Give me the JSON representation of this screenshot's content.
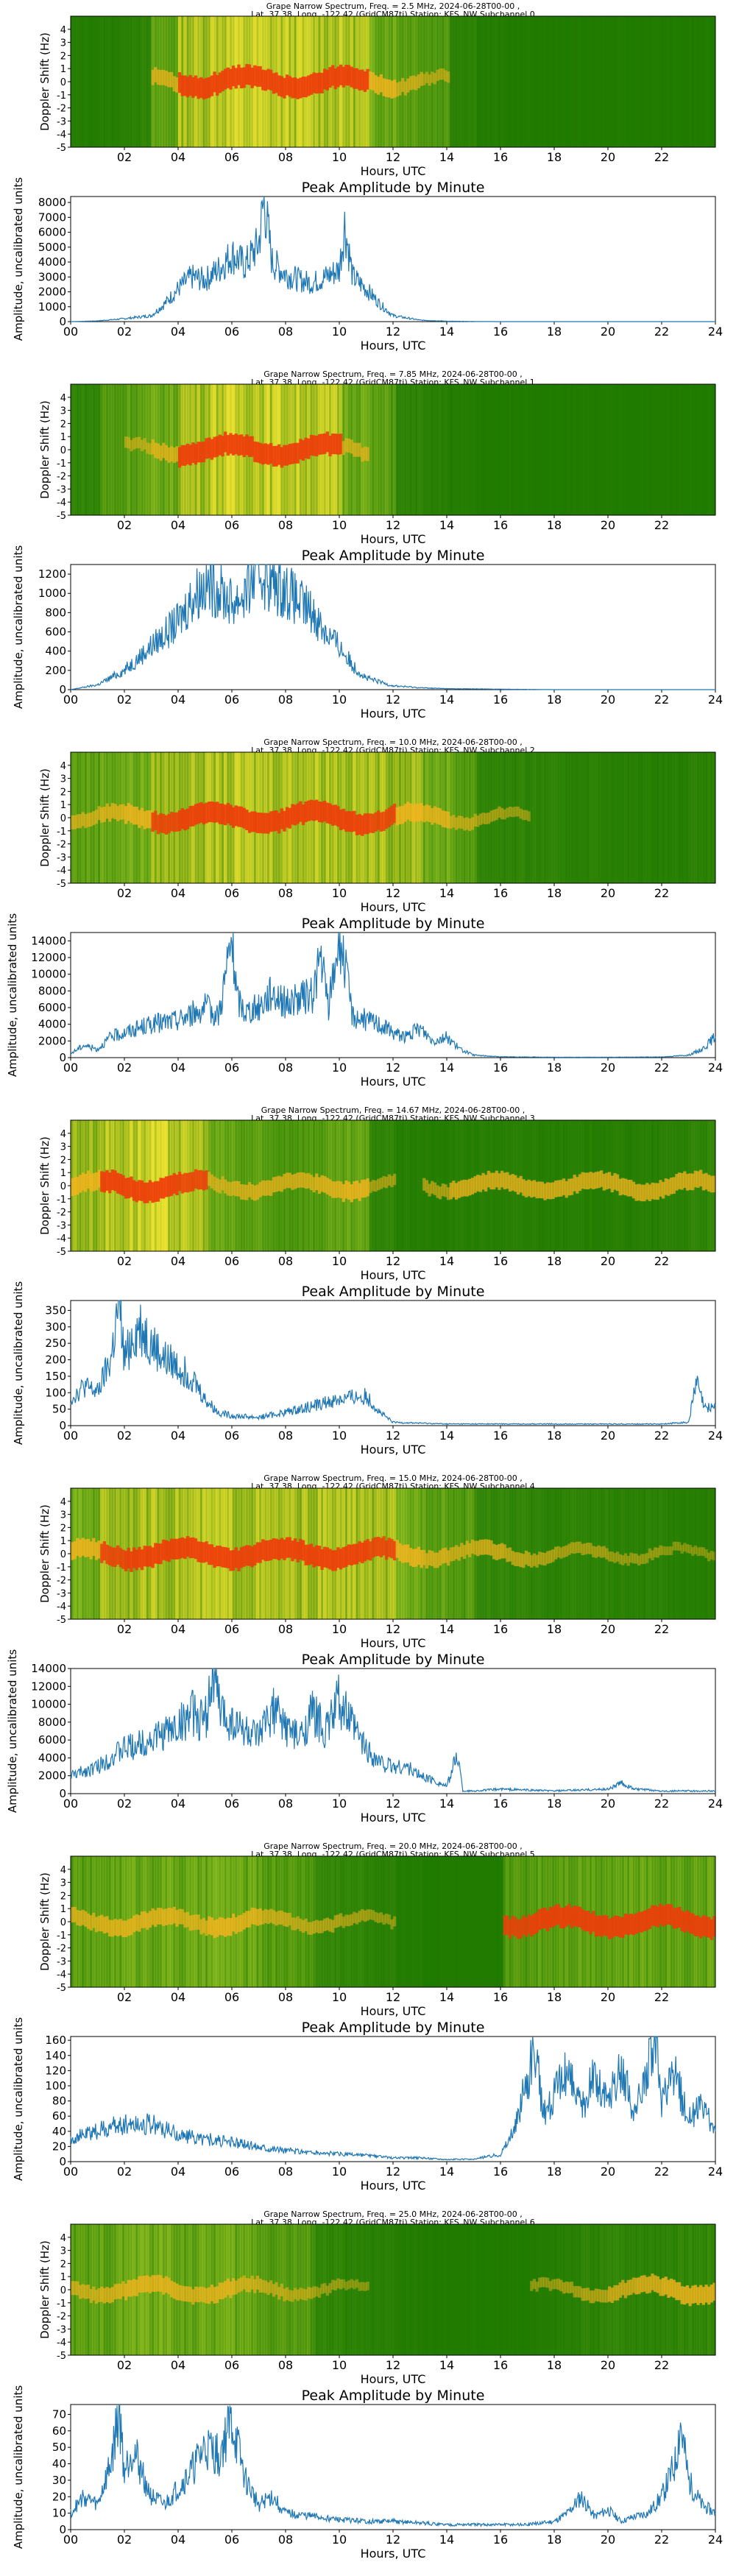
{
  "figure": {
    "x_label": "Hours, UTC",
    "spectrogram_y_label": "Doppler Shift (Hz)",
    "amplitude_title": "Peak Amplitude by Minute",
    "amplitude_y_label": "Amplitude, uncalibrated units",
    "spectrogram_x_ticks": [
      "02",
      "04",
      "06",
      "08",
      "10",
      "12",
      "14",
      "16",
      "18",
      "20",
      "22"
    ],
    "amplitude_x_ticks": [
      "00",
      "02",
      "04",
      "06",
      "08",
      "10",
      "12",
      "14",
      "16",
      "18",
      "20",
      "22",
      "24"
    ],
    "doppler_ticks": [
      "4",
      "3",
      "2",
      "1",
      "0",
      "-1",
      "-2",
      "-3",
      "-4",
      "-5"
    ],
    "colors": {
      "background": "#1f7a00",
      "line": "#1f77b4"
    }
  },
  "chart_data": [
    {
      "type": "heatmap",
      "title_line1": "Grape Narrow Spectrum, Freq. = 2.5 MHz, 2024-06-28T00-00 ,",
      "title_line2": "Lat.  37.38, Long. -122.42 (GridCM87tj) Station: KFS_NW Subchannel 0",
      "ylabel": "Doppler Shift (Hz)",
      "xlabel": "Hours, UTC",
      "x_range": [
        0,
        24
      ],
      "y_range": [
        -5,
        5
      ],
      "activity_profile": [
        0.15,
        0.2,
        0.3,
        0.55,
        0.85,
        1.0,
        1.0,
        0.95,
        0.95,
        0.9,
        0.85,
        0.7,
        0.55,
        0.45,
        0.3,
        0.15,
        0.1,
        0.1,
        0.1,
        0.1,
        0.1,
        0.1,
        0.1,
        0.1
      ],
      "trace_profile": [
        0,
        0,
        0,
        0.6,
        1,
        1,
        1,
        1,
        1,
        1,
        1,
        0.8,
        0.5,
        0.3,
        0,
        0,
        0,
        0,
        0,
        0,
        0,
        0,
        0,
        0
      ]
    },
    {
      "type": "line",
      "title": "Peak Amplitude by Minute",
      "xlabel": "Hours, UTC",
      "ylabel": "Amplitude, uncalibrated units",
      "xlim": [
        0,
        24
      ],
      "ylim": [
        0,
        8400
      ],
      "y_ticks": [
        0,
        1000,
        2000,
        3000,
        4000,
        5000,
        6000,
        7000,
        8000
      ],
      "x": [
        0,
        1,
        2,
        3,
        3.5,
        4,
        4.5,
        5,
        5.5,
        6,
        6.5,
        7,
        7.2,
        7.5,
        8,
        8.5,
        9,
        9.5,
        10,
        10.2,
        10.5,
        11,
        11.5,
        12,
        13,
        14,
        15,
        16,
        18,
        20,
        22,
        24
      ],
      "y": [
        0,
        50,
        200,
        400,
        1200,
        2200,
        3000,
        2800,
        3500,
        4500,
        3800,
        5200,
        8200,
        4000,
        3200,
        2800,
        2600,
        3000,
        3500,
        6500,
        3000,
        2200,
        1200,
        400,
        100,
        30,
        10,
        0,
        0,
        0,
        0,
        0
      ]
    },
    {
      "type": "heatmap",
      "title_line1": "Grape Narrow Spectrum, Freq. = 7.85 MHz, 2024-06-28T00-00 ,",
      "title_line2": "Lat.  37.38, Long. -122.42 (GridCM87tj) Station: KFS_NW Subchannel 1",
      "ylabel": "Doppler Shift (Hz)",
      "xlabel": "Hours, UTC",
      "x_range": [
        0,
        24
      ],
      "y_range": [
        -5,
        5
      ],
      "activity_profile": [
        0.35,
        0.45,
        0.55,
        0.65,
        0.85,
        1.0,
        1.0,
        1.0,
        0.95,
        0.9,
        0.7,
        0.5,
        0.3,
        0.2,
        0.15,
        0.1,
        0.1,
        0.1,
        0.1,
        0.1,
        0.1,
        0.1,
        0.1,
        0.1
      ],
      "trace_profile": [
        0,
        0,
        0.3,
        0.6,
        1,
        1,
        1,
        1,
        1,
        1,
        0.5,
        0,
        0,
        0,
        0,
        0,
        0,
        0,
        0,
        0,
        0,
        0,
        0,
        0
      ]
    },
    {
      "type": "line",
      "title": "Peak Amplitude by Minute",
      "xlabel": "Hours, UTC",
      "ylabel": "Amplitude, uncalibrated units",
      "xlim": [
        0,
        24
      ],
      "ylim": [
        0,
        1300
      ],
      "y_ticks": [
        0,
        200,
        400,
        600,
        800,
        1000,
        1200
      ],
      "x": [
        0,
        1,
        2,
        3,
        4,
        4.5,
        5,
        5.5,
        6,
        6.5,
        7,
        7.5,
        8,
        8.5,
        9,
        9.5,
        10,
        10.5,
        11,
        12,
        13,
        14,
        16,
        18,
        20,
        22,
        24
      ],
      "y": [
        0,
        50,
        200,
        450,
        700,
        950,
        1100,
        1050,
        900,
        1000,
        1250,
        1100,
        1050,
        900,
        800,
        600,
        450,
        250,
        120,
        40,
        20,
        10,
        5,
        0,
        0,
        0,
        0
      ]
    },
    {
      "type": "heatmap",
      "title_line1": "Grape Narrow Spectrum, Freq. = 10.0 MHz, 2024-06-28T00-00 ,",
      "title_line2": "Lat.  37.38, Long. -122.42 (GridCM87tj) Station: KFS_NW Subchannel 2",
      "ylabel": "Doppler Shift (Hz)",
      "xlabel": "Hours, UTC",
      "x_range": [
        0,
        24
      ],
      "y_range": [
        -5,
        5
      ],
      "activity_profile": [
        0.55,
        0.65,
        0.7,
        0.75,
        0.8,
        0.85,
        0.9,
        0.9,
        0.9,
        0.9,
        0.85,
        0.8,
        0.75,
        0.7,
        0.5,
        0.35,
        0.3,
        0.3,
        0.25,
        0.25,
        0.2,
        0.2,
        0.2,
        0.25
      ],
      "trace_profile": [
        0.5,
        0.6,
        0.8,
        0.9,
        1,
        1,
        1,
        1,
        1,
        1,
        1,
        0.9,
        0.8,
        0.7,
        0.4,
        0.3,
        0.2,
        0,
        0,
        0,
        0,
        0,
        0,
        0
      ]
    },
    {
      "type": "line",
      "title": "Peak Amplitude by Minute",
      "xlabel": "Hours, UTC",
      "ylabel": "Amplitude, uncalibrated units",
      "xlim": [
        0,
        24
      ],
      "ylim": [
        0,
        15000
      ],
      "y_ticks": [
        0,
        2000,
        4000,
        6000,
        8000,
        10000,
        12000,
        14000
      ],
      "x": [
        0,
        0.5,
        1,
        1.5,
        2,
        3,
        4,
        5,
        5.5,
        6,
        6.2,
        6.5,
        7,
        7.5,
        8,
        8.5,
        9,
        9.3,
        9.6,
        10,
        10.5,
        11,
        11.5,
        12,
        12.5,
        13,
        13.5,
        14,
        14.5,
        15,
        16,
        18,
        20,
        22,
        23,
        23.5,
        24
      ],
      "y": [
        500,
        1500,
        1000,
        2500,
        3000,
        4000,
        4500,
        6000,
        5000,
        14000,
        7000,
        5500,
        6000,
        8000,
        6500,
        7000,
        7500,
        12000,
        6000,
        15000,
        5000,
        4500,
        4000,
        3000,
        2500,
        3500,
        2000,
        2500,
        1000,
        300,
        100,
        50,
        50,
        80,
        300,
        1000,
        2500
      ]
    },
    {
      "type": "heatmap",
      "title_line1": "Grape Narrow Spectrum, Freq. = 14.67 MHz, 2024-06-28T00-00 ,",
      "title_line2": "Lat.  37.38, Long. -122.42 (GridCM87tj) Station: KFS_NW Subchannel 3",
      "ylabel": "Doppler Shift (Hz)",
      "xlabel": "Hours, UTC",
      "x_range": [
        0,
        24
      ],
      "y_range": [
        -5,
        5
      ],
      "activity_profile": [
        0.75,
        0.9,
        1.0,
        1.0,
        0.85,
        0.6,
        0.5,
        0.45,
        0.45,
        0.5,
        0.55,
        0.35,
        0.2,
        0.15,
        0.2,
        0.2,
        0.2,
        0.2,
        0.2,
        0.2,
        0.2,
        0.2,
        0.25,
        0.35
      ],
      "trace_profile": [
        0.8,
        1,
        1,
        1,
        0.9,
        0.5,
        0.6,
        0.6,
        0.6,
        0.7,
        0.8,
        0.3,
        0,
        0.4,
        0.7,
        0.7,
        0.7,
        0.7,
        0.7,
        0.7,
        0.7,
        0.7,
        0.7,
        0.7
      ]
    },
    {
      "type": "line",
      "title": "Peak Amplitude by Minute",
      "xlabel": "Hours, UTC",
      "ylabel": "Amplitude, uncalibrated units",
      "xlim": [
        0,
        24
      ],
      "ylim": [
        0,
        380
      ],
      "y_ticks": [
        0,
        50,
        100,
        150,
        200,
        250,
        300,
        350
      ],
      "x": [
        0,
        0.5,
        1,
        1.5,
        1.8,
        2,
        2.3,
        2.6,
        3,
        3.5,
        4,
        4.5,
        5,
        5.5,
        6,
        7,
        8,
        9,
        10,
        11,
        11.5,
        12,
        14,
        16,
        18,
        20,
        22,
        23,
        23.3,
        23.6,
        24
      ],
      "y": [
        80,
        120,
        100,
        200,
        370,
        200,
        270,
        300,
        250,
        200,
        180,
        150,
        80,
        40,
        30,
        25,
        40,
        60,
        80,
        90,
        40,
        10,
        5,
        5,
        5,
        5,
        5,
        10,
        130,
        50,
        60
      ]
    },
    {
      "type": "heatmap",
      "title_line1": "Grape Narrow Spectrum, Freq. = 15.0 MHz, 2024-06-28T00-00 ,",
      "title_line2": "Lat.  37.38, Long. -122.42 (GridCM87tj) Station: KFS_NW Subchannel 4",
      "ylabel": "Doppler Shift (Hz)",
      "xlabel": "Hours, UTC",
      "x_range": [
        0,
        24
      ],
      "y_range": [
        -5,
        5
      ],
      "activity_profile": [
        0.7,
        0.8,
        0.8,
        0.85,
        0.85,
        0.9,
        0.85,
        0.8,
        0.8,
        0.85,
        0.85,
        0.75,
        0.7,
        0.6,
        0.45,
        0.4,
        0.35,
        0.3,
        0.3,
        0.3,
        0.25,
        0.25,
        0.2,
        0.2
      ],
      "trace_profile": [
        0.8,
        0.9,
        1,
        1,
        1,
        1,
        1,
        1,
        1,
        1,
        1,
        0.9,
        0.8,
        0.6,
        0.5,
        0.6,
        0.5,
        0.4,
        0.3,
        0.3,
        0.2,
        0.2,
        0.1,
        0.1
      ]
    },
    {
      "type": "line",
      "title": "Peak Amplitude by Minute",
      "xlabel": "Hours, UTC",
      "ylabel": "Amplitude, uncalibrated units",
      "xlim": [
        0,
        24
      ],
      "ylim": [
        0,
        14000
      ],
      "y_ticks": [
        0,
        2000,
        4000,
        6000,
        8000,
        10000,
        12000,
        14000
      ],
      "x": [
        0,
        1,
        2,
        3,
        4,
        4.5,
        5,
        5.3,
        5.6,
        6,
        7,
        7.5,
        8,
        8.5,
        9,
        9.5,
        10,
        10.5,
        11,
        11.5,
        12,
        12.5,
        13,
        13.5,
        14,
        14.4,
        14.6,
        15,
        16,
        18,
        20,
        20.5,
        21,
        22,
        24
      ],
      "y": [
        2000,
        3000,
        5000,
        6000,
        7500,
        9000,
        8000,
        13500,
        9000,
        8000,
        6000,
        9500,
        7500,
        6000,
        9000,
        7000,
        10500,
        7500,
        5000,
        3500,
        3000,
        3000,
        2000,
        1500,
        800,
        4500,
        300,
        300,
        500,
        300,
        500,
        1200,
        500,
        300,
        300
      ]
    },
    {
      "type": "heatmap",
      "title_line1": "Grape Narrow Spectrum, Freq. = 20.0 MHz, 2024-06-28T00-00 ,",
      "title_line2": "Lat.  37.38, Long. -122.42 (GridCM87tj) Station: KFS_NW Subchannel 5",
      "ylabel": "Doppler Shift (Hz)",
      "xlabel": "Hours, UTC",
      "x_range": [
        0,
        24
      ],
      "y_range": [
        -5,
        5
      ],
      "activity_profile": [
        0.5,
        0.6,
        0.65,
        0.65,
        0.6,
        0.7,
        0.6,
        0.5,
        0.45,
        0.4,
        0.35,
        0.25,
        0.15,
        0.1,
        0.1,
        0.1,
        0.45,
        0.55,
        0.6,
        0.6,
        0.6,
        0.6,
        0.6,
        0.6
      ],
      "trace_profile": [
        0.6,
        0.7,
        0.7,
        0.7,
        0.6,
        0.8,
        0.7,
        0.5,
        0.4,
        0.4,
        0.3,
        0.2,
        0,
        0,
        0,
        0,
        0.9,
        1,
        1,
        1,
        1,
        1,
        1,
        1
      ]
    },
    {
      "type": "line",
      "title": "Peak Amplitude by Minute",
      "xlabel": "Hours, UTC",
      "ylabel": "Amplitude, uncalibrated units",
      "xlim": [
        0,
        24
      ],
      "ylim": [
        0,
        165
      ],
      "y_ticks": [
        0,
        20,
        40,
        60,
        80,
        100,
        120,
        140,
        160
      ],
      "x": [
        0,
        1,
        2,
        3,
        4,
        5,
        6,
        7,
        8,
        9,
        10,
        11,
        12,
        13,
        14,
        15,
        16,
        16.5,
        17,
        17.3,
        17.6,
        18,
        18.5,
        19,
        19.5,
        20,
        20.5,
        21,
        21.5,
        21.8,
        22,
        22.5,
        23,
        23.5,
        24
      ],
      "y": [
        30,
        40,
        50,
        50,
        35,
        30,
        25,
        20,
        15,
        12,
        10,
        8,
        5,
        5,
        3,
        3,
        10,
        40,
        110,
        145,
        60,
        90,
        120,
        70,
        110,
        80,
        120,
        60,
        130,
        160,
        80,
        110,
        60,
        70,
        40
      ]
    },
    {
      "type": "heatmap",
      "title_line1": "Grape Narrow Spectrum, Freq. = 25.0 MHz, 2024-06-28T00-00 ,",
      "title_line2": "Lat.  37.38, Long. -122.42 (GridCM87tj) Station: KFS_NW Subchannel 6",
      "ylabel": "Doppler Shift (Hz)",
      "xlabel": "Hours, UTC",
      "x_range": [
        0,
        24
      ],
      "y_range": [
        -5,
        5
      ],
      "activity_profile": [
        0.5,
        0.6,
        0.7,
        0.7,
        0.6,
        0.65,
        0.6,
        0.5,
        0.45,
        0.35,
        0.25,
        0.2,
        0.15,
        0.1,
        0.1,
        0.1,
        0.1,
        0.15,
        0.2,
        0.3,
        0.35,
        0.3,
        0.35,
        0.4
      ],
      "trace_profile": [
        0.5,
        0.6,
        0.7,
        0.7,
        0.6,
        0.7,
        0.5,
        0.4,
        0.3,
        0.2,
        0.1,
        0,
        0,
        0,
        0,
        0,
        0,
        0.2,
        0.3,
        0.4,
        0.6,
        0.7,
        0.8,
        0.8
      ]
    },
    {
      "type": "line",
      "title": "Peak Amplitude by Minute",
      "xlabel": "Hours, UTC",
      "ylabel": "Amplitude, uncalibrated units",
      "xlim": [
        0,
        24
      ],
      "ylim": [
        0,
        76
      ],
      "y_ticks": [
        0,
        10,
        20,
        30,
        40,
        50,
        60,
        70
      ],
      "x": [
        0,
        0.5,
        1,
        1.5,
        1.8,
        2,
        2.3,
        3,
        3.5,
        4,
        4.5,
        5,
        5.5,
        6,
        6.5,
        7,
        7.5,
        8,
        9,
        10,
        11,
        12,
        13,
        14,
        15,
        16,
        17,
        18,
        18.5,
        19,
        19.5,
        20,
        20.5,
        21,
        21.5,
        22,
        22.5,
        22.7,
        23,
        23.5,
        24
      ],
      "y": [
        10,
        20,
        15,
        40,
        72,
        35,
        50,
        20,
        15,
        25,
        35,
        50,
        45,
        65,
        30,
        15,
        20,
        10,
        8,
        6,
        5,
        5,
        4,
        3,
        3,
        3,
        3,
        5,
        10,
        20,
        8,
        12,
        5,
        8,
        10,
        20,
        40,
        65,
        30,
        15,
        10
      ]
    }
  ]
}
